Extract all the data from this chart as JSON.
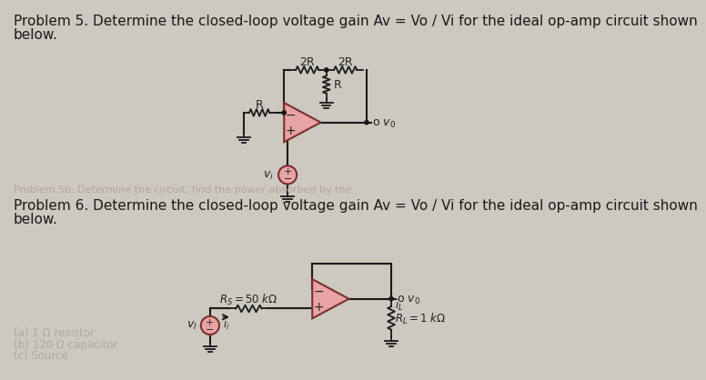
{
  "bg_color": "#cdc8c0",
  "text_color": "#1a1a1a",
  "title1_line1": "Problem 5. Determine the closed-loop voltage gain Av = Vo / Vi for the ideal op-amp circuit shown",
  "title1_line2": "below.",
  "title2_line1": "Problem 6. Determine the closed-loop voltage gain Av = Vo / Vi for the ideal op-amp circuit shown",
  "title2_line2": "below.",
  "title_fontsize": 11.0,
  "opamp_fill": "#e8a4a4",
  "opamp_edge": "#7a3030",
  "wire_color": "#1a1a1a",
  "source_fill": "#e8a4a4",
  "source_edge": "#7a3030",
  "faded_color": "#aaaaaa",
  "faded_mid": "#bbbbbb",
  "watermark_texts": [
    "(a) 1 Ω resistor",
    "(b) 120 Ω capacitor",
    "(c) Source"
  ]
}
